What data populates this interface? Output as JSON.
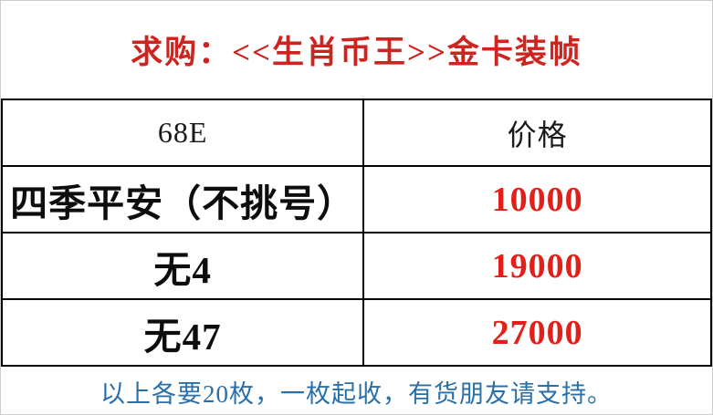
{
  "page": {
    "background": "#ffffff",
    "frame_border_color": "#cccccc"
  },
  "title": {
    "text": "求购：<<生肖币王>>金卡装帧",
    "color": "#ce241f"
  },
  "table": {
    "border_color": "#000000",
    "header": {
      "item_label": "68E",
      "price_label": "价格"
    },
    "rows": [
      {
        "item": "四季平安（不挑号）",
        "price": "10000"
      },
      {
        "item": "无4",
        "price": "19000"
      },
      {
        "item": "无47",
        "price": "27000"
      }
    ],
    "item_text_color": "#0d0d0d",
    "price_text_color": "#e2201b"
  },
  "footer": {
    "text": "以上各要20枚，一枚起收，有货朋友请支持。",
    "color": "#2b6fa8"
  }
}
